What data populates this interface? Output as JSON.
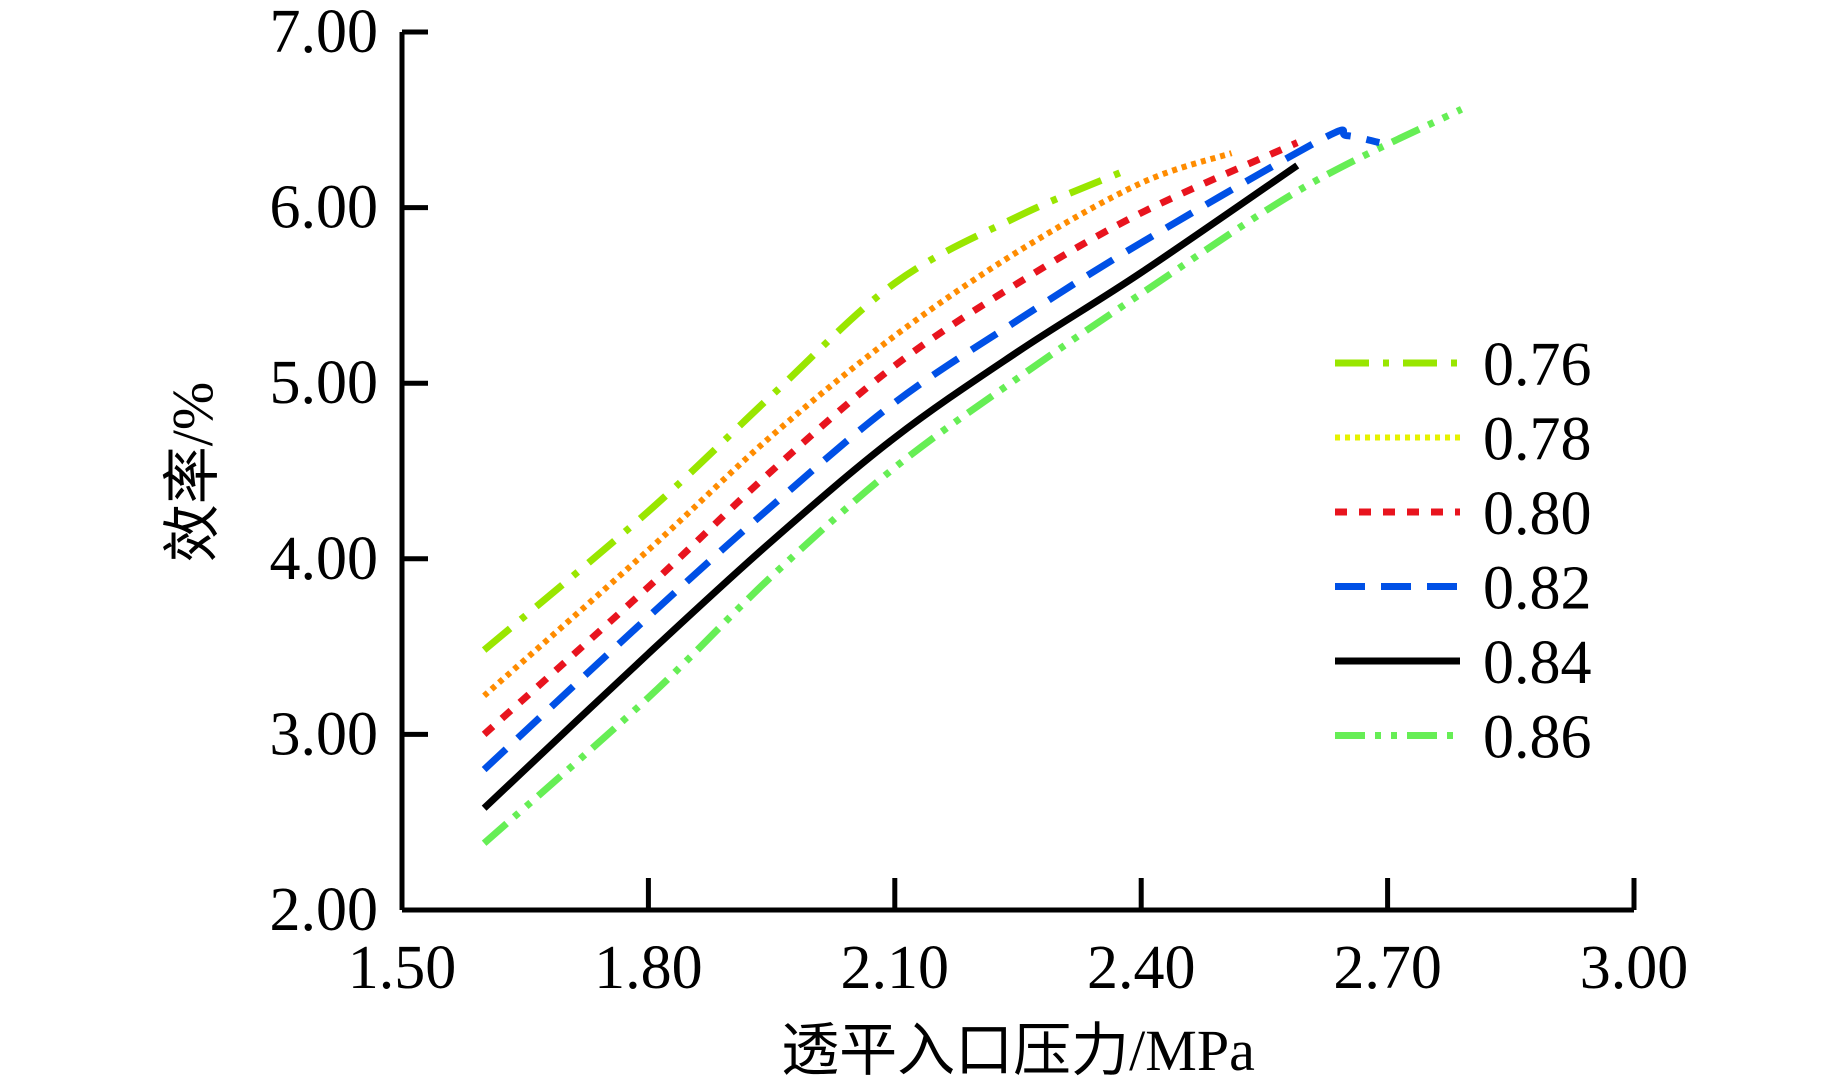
{
  "chart_data": {
    "type": "line",
    "title": "",
    "xlabel": "透平入口压力/MPa",
    "ylabel": "效率/%",
    "xlim": [
      1.5,
      3.0
    ],
    "ylim": [
      2.0,
      7.0
    ],
    "xticks": [
      "1.50",
      "1.80",
      "2.10",
      "2.40",
      "2.70",
      "3.00"
    ],
    "yticks": [
      "2.00",
      "3.00",
      "4.00",
      "5.00",
      "6.00",
      "7.00"
    ],
    "grid": false,
    "legend_position": "right",
    "series": [
      {
        "name": "0.76",
        "color": "#99e600",
        "dash": "dashdot",
        "x": [
          1.6,
          1.8,
          1.95,
          2.1,
          2.25,
          2.375
        ],
        "y": [
          3.48,
          4.27,
          4.93,
          5.57,
          5.95,
          6.2
        ]
      },
      {
        "name": "0.78",
        "color": "#ff8c00",
        "legend_color": "#e6f200",
        "dash": "dot",
        "x": [
          1.6,
          1.8,
          1.95,
          2.1,
          2.25,
          2.4,
          2.51
        ],
        "y": [
          3.22,
          4.05,
          4.7,
          5.27,
          5.75,
          6.14,
          6.31
        ]
      },
      {
        "name": "0.80",
        "color": "#e8141e",
        "dash": "shortdash",
        "x": [
          1.6,
          1.8,
          1.95,
          2.1,
          2.25,
          2.4,
          2.59
        ],
        "y": [
          3.0,
          3.84,
          4.5,
          5.1,
          5.57,
          5.97,
          6.37
        ]
      },
      {
        "name": "0.82",
        "color": "#0050e6",
        "dash": "dash",
        "x": [
          1.6,
          1.8,
          1.95,
          2.1,
          2.25,
          2.4,
          2.62,
          2.65,
          2.69
        ],
        "y": [
          2.8,
          3.67,
          4.3,
          4.89,
          5.36,
          5.8,
          6.39,
          6.41,
          6.37
        ]
      },
      {
        "name": "0.84",
        "color": "#000000",
        "dash": "solid",
        "x": [
          1.6,
          1.8,
          1.95,
          2.1,
          2.25,
          2.4,
          2.59
        ],
        "y": [
          2.58,
          3.46,
          4.1,
          4.69,
          5.18,
          5.63,
          6.24
        ]
      },
      {
        "name": "0.86",
        "color": "#66ee55",
        "dash": "dashdotdot",
        "x": [
          1.6,
          1.8,
          1.95,
          2.1,
          2.25,
          2.4,
          2.6,
          2.79
        ],
        "y": [
          2.38,
          3.21,
          3.9,
          4.52,
          5.03,
          5.51,
          6.12,
          6.56
        ]
      }
    ]
  }
}
